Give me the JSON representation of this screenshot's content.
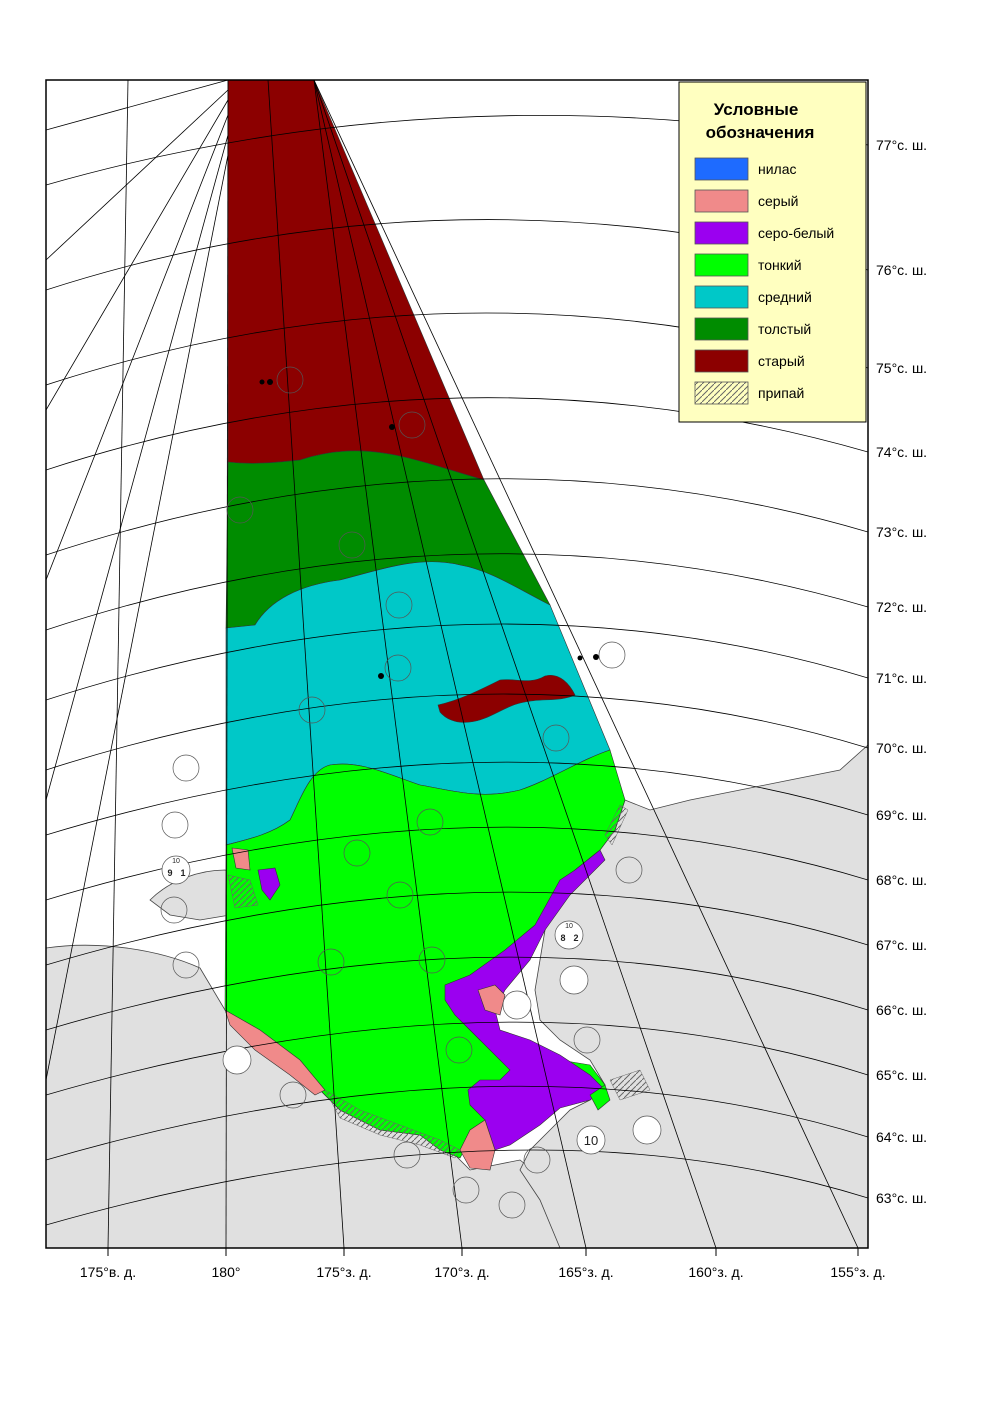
{
  "legend": {
    "title_line1": "Условные",
    "title_line2": "обозначения",
    "items": [
      {
        "label": "нилас",
        "color": "#1E6BFF",
        "kind": "solid"
      },
      {
        "label": "серый",
        "color": "#F08A8A",
        "kind": "solid"
      },
      {
        "label": "серо-белый",
        "color": "#9B00F0",
        "kind": "solid"
      },
      {
        "label": "тонкий",
        "color": "#00FF00",
        "kind": "solid"
      },
      {
        "label": "средний",
        "color": "#00C8C8",
        "kind": "solid"
      },
      {
        "label": "толстый",
        "color": "#008C00",
        "kind": "solid"
      },
      {
        "label": "старый",
        "color": "#8C0000",
        "kind": "solid"
      },
      {
        "label": "припай",
        "color": "#ffffff",
        "kind": "hatch"
      }
    ]
  },
  "latitude_labels": [
    "77°с. ш.",
    "76°с. ш.",
    "75°с. ш.",
    "74°с. ш.",
    "73°с. ш.",
    "72°с. ш.",
    "71°с. ш.",
    "70°с. ш.",
    "69°с. ш.",
    "68°с. ш.",
    "67°с. ш.",
    "66°с. ш.",
    "65°с. ш.",
    "64°с. ш.",
    "63°с. ш."
  ],
  "longitude_labels": [
    "175°в. д.",
    "180°",
    "175°з. д.",
    "170°з. д.",
    "165°з. д.",
    "160°з. д.",
    "155°з. д."
  ],
  "egg_codes": [
    "10",
    "9",
    "1",
    "8",
    "2",
    "10"
  ],
  "colors": {
    "land": "#E0E0E0",
    "frame": "#000000",
    "graticule": "#000000",
    "legend_bg": "#FFFFC0"
  }
}
